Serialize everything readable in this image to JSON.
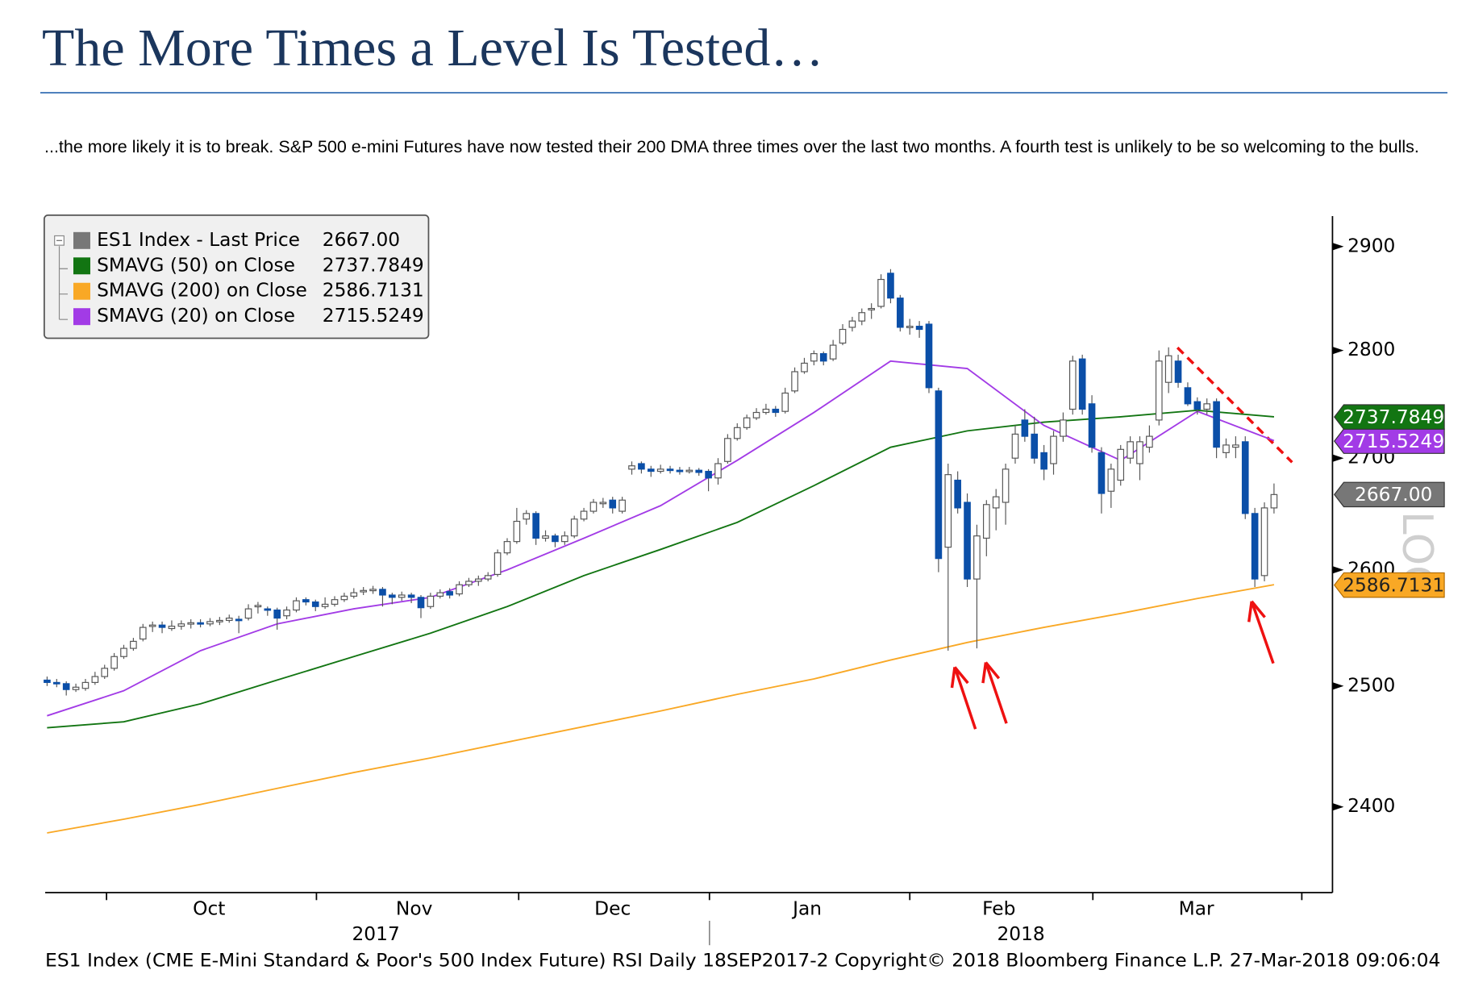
{
  "chart_data": {
    "type": "candlestick",
    "title": "The More Times a Level Is Tested…",
    "subtitle": "...the more likely it is to break. S&P 500 e-mini Futures have now tested their 200 DMA three times over the last two months. A fourth test is unlikely to be so welcoming to the bulls.",
    "footer": "ES1 Index (CME E-Mini Standard & Poor's 500 Index Future) RSI  Daily 18SEP2017-2  Copyright© 2018 Bloomberg Finance L.P.  27-Mar-2018 09:06:04",
    "scale_label": "LOG",
    "log_scale": true,
    "ylim": [
      2333,
      2930
    ],
    "yticks": [
      2400,
      2500,
      2600,
      2700,
      2800,
      2900
    ],
    "xlim": [
      -0.2,
      134.1
    ],
    "xticks": [
      6.2,
      28.1,
      49.2,
      69.1,
      90,
      109.1,
      130.9
    ],
    "x_month_labels": [
      {
        "value": 16.9,
        "label": "Oct"
      },
      {
        "value": 38.3,
        "label": "Nov"
      },
      {
        "value": 59,
        "label": "Dec"
      },
      {
        "value": 79.3,
        "label": "Jan"
      },
      {
        "value": 99.3,
        "label": "Feb"
      },
      {
        "value": 119.9,
        "label": "Mar"
      }
    ],
    "x_year_labels": [
      {
        "value": 34.3,
        "label": "2017"
      },
      {
        "value": 101.6,
        "label": "2018"
      }
    ],
    "up_color": "#ffffff",
    "down_color": "#0b4fa8",
    "ohlc": [
      [
        2505,
        2508,
        2500,
        2503
      ],
      [
        2503,
        2506,
        2499,
        2502
      ],
      [
        2502,
        2504,
        2492,
        2497
      ],
      [
        2497,
        2502,
        2495,
        2499
      ],
      [
        2498,
        2506,
        2496,
        2503
      ],
      [
        2503,
        2512,
        2501,
        2508
      ],
      [
        2508,
        2518,
        2506,
        2515
      ],
      [
        2515,
        2528,
        2513,
        2525
      ],
      [
        2525,
        2535,
        2523,
        2532
      ],
      [
        2532,
        2541,
        2530,
        2538
      ],
      [
        2540,
        2553,
        2538,
        2550
      ],
      [
        2551,
        2555,
        2546,
        2552
      ],
      [
        2552,
        2555,
        2545,
        2550
      ],
      [
        2549,
        2556,
        2547,
        2551
      ],
      [
        2551,
        2556,
        2548,
        2553
      ],
      [
        2553,
        2557,
        2549,
        2554
      ],
      [
        2554,
        2557,
        2550,
        2553
      ],
      [
        2553,
        2558,
        2551,
        2555
      ],
      [
        2555,
        2559,
        2552,
        2556
      ],
      [
        2556,
        2561,
        2554,
        2558
      ],
      [
        2557,
        2560,
        2545,
        2556
      ],
      [
        2558,
        2570,
        2556,
        2566
      ],
      [
        2568,
        2572,
        2562,
        2569
      ],
      [
        2566,
        2568,
        2560,
        2565
      ],
      [
        2565,
        2567,
        2548,
        2558
      ],
      [
        2560,
        2568,
        2557,
        2565
      ],
      [
        2565,
        2576,
        2563,
        2573
      ],
      [
        2574,
        2576,
        2569,
        2572
      ],
      [
        2572,
        2574,
        2564,
        2568
      ],
      [
        2568,
        2576,
        2566,
        2570
      ],
      [
        2570,
        2577,
        2568,
        2574
      ],
      [
        2574,
        2580,
        2572,
        2577
      ],
      [
        2577,
        2584,
        2575,
        2580
      ],
      [
        2581,
        2585,
        2578,
        2582
      ],
      [
        2582,
        2586,
        2579,
        2583
      ],
      [
        2583,
        2585,
        2568,
        2578
      ],
      [
        2578,
        2580,
        2570,
        2576
      ],
      [
        2576,
        2581,
        2573,
        2578
      ],
      [
        2578,
        2580,
        2571,
        2576
      ],
      [
        2576,
        2578,
        2558,
        2567
      ],
      [
        2568,
        2580,
        2566,
        2577
      ],
      [
        2577,
        2583,
        2575,
        2580
      ],
      [
        2581,
        2584,
        2575,
        2578
      ],
      [
        2579,
        2590,
        2577,
        2587
      ],
      [
        2587,
        2593,
        2585,
        2590
      ],
      [
        2590,
        2595,
        2586,
        2592
      ],
      [
        2592,
        2598,
        2590,
        2595
      ],
      [
        2596,
        2618,
        2594,
        2615
      ],
      [
        2615,
        2628,
        2613,
        2625
      ],
      [
        2625,
        2655,
        2623,
        2643
      ],
      [
        2645,
        2653,
        2640,
        2650
      ],
      [
        2650,
        2652,
        2622,
        2628
      ],
      [
        2628,
        2635,
        2625,
        2630
      ],
      [
        2630,
        2632,
        2620,
        2625
      ],
      [
        2625,
        2634,
        2622,
        2630
      ],
      [
        2630,
        2648,
        2628,
        2645
      ],
      [
        2645,
        2655,
        2643,
        2652
      ],
      [
        2652,
        2663,
        2650,
        2660
      ],
      [
        2660,
        2664,
        2655,
        2660
      ],
      [
        2662,
        2665,
        2650,
        2655
      ],
      [
        2652,
        2665,
        2650,
        2662
      ],
      [
        2690,
        2697,
        2685,
        2693
      ],
      [
        2695,
        2697,
        2686,
        2690
      ],
      [
        2690,
        2693,
        2683,
        2688
      ],
      [
        2688,
        2694,
        2686,
        2690
      ],
      [
        2690,
        2693,
        2686,
        2689
      ],
      [
        2689,
        2692,
        2685,
        2688
      ],
      [
        2688,
        2692,
        2686,
        2689
      ],
      [
        2689,
        2691,
        2684,
        2687
      ],
      [
        2688,
        2690,
        2670,
        2682
      ],
      [
        2682,
        2700,
        2676,
        2695
      ],
      [
        2697,
        2722,
        2695,
        2718
      ],
      [
        2718,
        2732,
        2716,
        2728
      ],
      [
        2728,
        2740,
        2726,
        2737
      ],
      [
        2737,
        2746,
        2735,
        2742
      ],
      [
        2742,
        2750,
        2740,
        2745
      ],
      [
        2745,
        2748,
        2738,
        2742
      ],
      [
        2743,
        2765,
        2741,
        2760
      ],
      [
        2762,
        2784,
        2760,
        2780
      ],
      [
        2780,
        2793,
        2778,
        2788
      ],
      [
        2790,
        2800,
        2786,
        2797
      ],
      [
        2797,
        2799,
        2786,
        2790
      ],
      [
        2792,
        2810,
        2790,
        2805
      ],
      [
        2807,
        2825,
        2805,
        2820
      ],
      [
        2822,
        2832,
        2818,
        2828
      ],
      [
        2828,
        2840,
        2824,
        2836
      ],
      [
        2840,
        2845,
        2830,
        2840
      ],
      [
        2842,
        2873,
        2840,
        2868
      ],
      [
        2874,
        2878,
        2845,
        2850
      ],
      [
        2850,
        2853,
        2818,
        2822
      ],
      [
        2822,
        2830,
        2815,
        2823
      ],
      [
        2823,
        2828,
        2812,
        2820
      ],
      [
        2825,
        2828,
        2760,
        2765
      ],
      [
        2762,
        2765,
        2598,
        2610
      ],
      [
        2620,
        2695,
        2530,
        2685
      ],
      [
        2680,
        2688,
        2650,
        2655
      ],
      [
        2660,
        2668,
        2585,
        2592
      ],
      [
        2592,
        2640,
        2532,
        2630
      ],
      [
        2628,
        2662,
        2612,
        2658
      ],
      [
        2655,
        2672,
        2635,
        2665
      ],
      [
        2660,
        2695,
        2640,
        2690
      ],
      [
        2700,
        2730,
        2695,
        2722
      ],
      [
        2735,
        2745,
        2715,
        2720
      ],
      [
        2722,
        2738,
        2695,
        2700
      ],
      [
        2705,
        2712,
        2680,
        2690
      ],
      [
        2695,
        2725,
        2685,
        2720
      ],
      [
        2720,
        2742,
        2715,
        2735
      ],
      [
        2745,
        2795,
        2740,
        2790
      ],
      [
        2792,
        2796,
        2740,
        2745
      ],
      [
        2750,
        2758,
        2705,
        2710
      ],
      [
        2705,
        2710,
        2650,
        2668
      ],
      [
        2670,
        2695,
        2655,
        2690
      ],
      [
        2680,
        2712,
        2675,
        2708
      ],
      [
        2700,
        2720,
        2695,
        2715
      ],
      [
        2695,
        2720,
        2680,
        2715
      ],
      [
        2710,
        2730,
        2705,
        2720
      ],
      [
        2735,
        2800,
        2730,
        2790
      ],
      [
        2770,
        2803,
        2760,
        2795
      ],
      [
        2790,
        2796,
        2765,
        2770
      ],
      [
        2765,
        2770,
        2748,
        2750
      ],
      [
        2752,
        2756,
        2740,
        2745
      ],
      [
        2745,
        2755,
        2740,
        2750
      ],
      [
        2752,
        2755,
        2700,
        2710
      ],
      [
        2705,
        2718,
        2700,
        2712
      ],
      [
        2710,
        2720,
        2700,
        2712
      ],
      [
        2715,
        2720,
        2645,
        2650
      ],
      [
        2650,
        2655,
        2585,
        2592
      ],
      [
        2595,
        2660,
        2590,
        2655
      ],
      [
        2655,
        2677,
        2650,
        2667
      ]
    ],
    "ma_x": [
      0,
      8,
      16,
      24,
      32,
      40,
      48,
      56,
      64,
      72,
      80,
      88,
      96,
      104,
      112,
      120,
      128
    ],
    "series": [
      {
        "name": "ES1 Index - Last Price",
        "value": 2667,
        "label": "2667.00",
        "color": "#777777"
      },
      {
        "name": "SMAVG (50) on Close",
        "value": 2737.7849,
        "label": "2737.7849",
        "color": "#127512",
        "values": [
          2465,
          2470,
          2485,
          2505,
          2525,
          2545,
          2568,
          2595,
          2618,
          2642,
          2675,
          2710,
          2725,
          2733,
          2738,
          2744,
          2738
        ]
      },
      {
        "name": "SMAVG (200) on Close",
        "value": 2586.7131,
        "label": "2586.7131",
        "color": "#f9a825",
        "values": [
          2379,
          2390,
          2402,
          2415,
          2428,
          2440,
          2453,
          2466,
          2479,
          2493,
          2506,
          2522,
          2537,
          2550,
          2562,
          2575,
          2587
        ]
      },
      {
        "name": "SMAVG (20) on Close",
        "value": 2715.5249,
        "label": "2715.5249",
        "color": "#a23be6",
        "values": [
          2475,
          2496,
          2530,
          2553,
          2566,
          2576,
          2600,
          2628,
          2657,
          2698,
          2742,
          2790,
          2783,
          2730,
          2698,
          2743,
          2716
        ]
      }
    ]
  }
}
